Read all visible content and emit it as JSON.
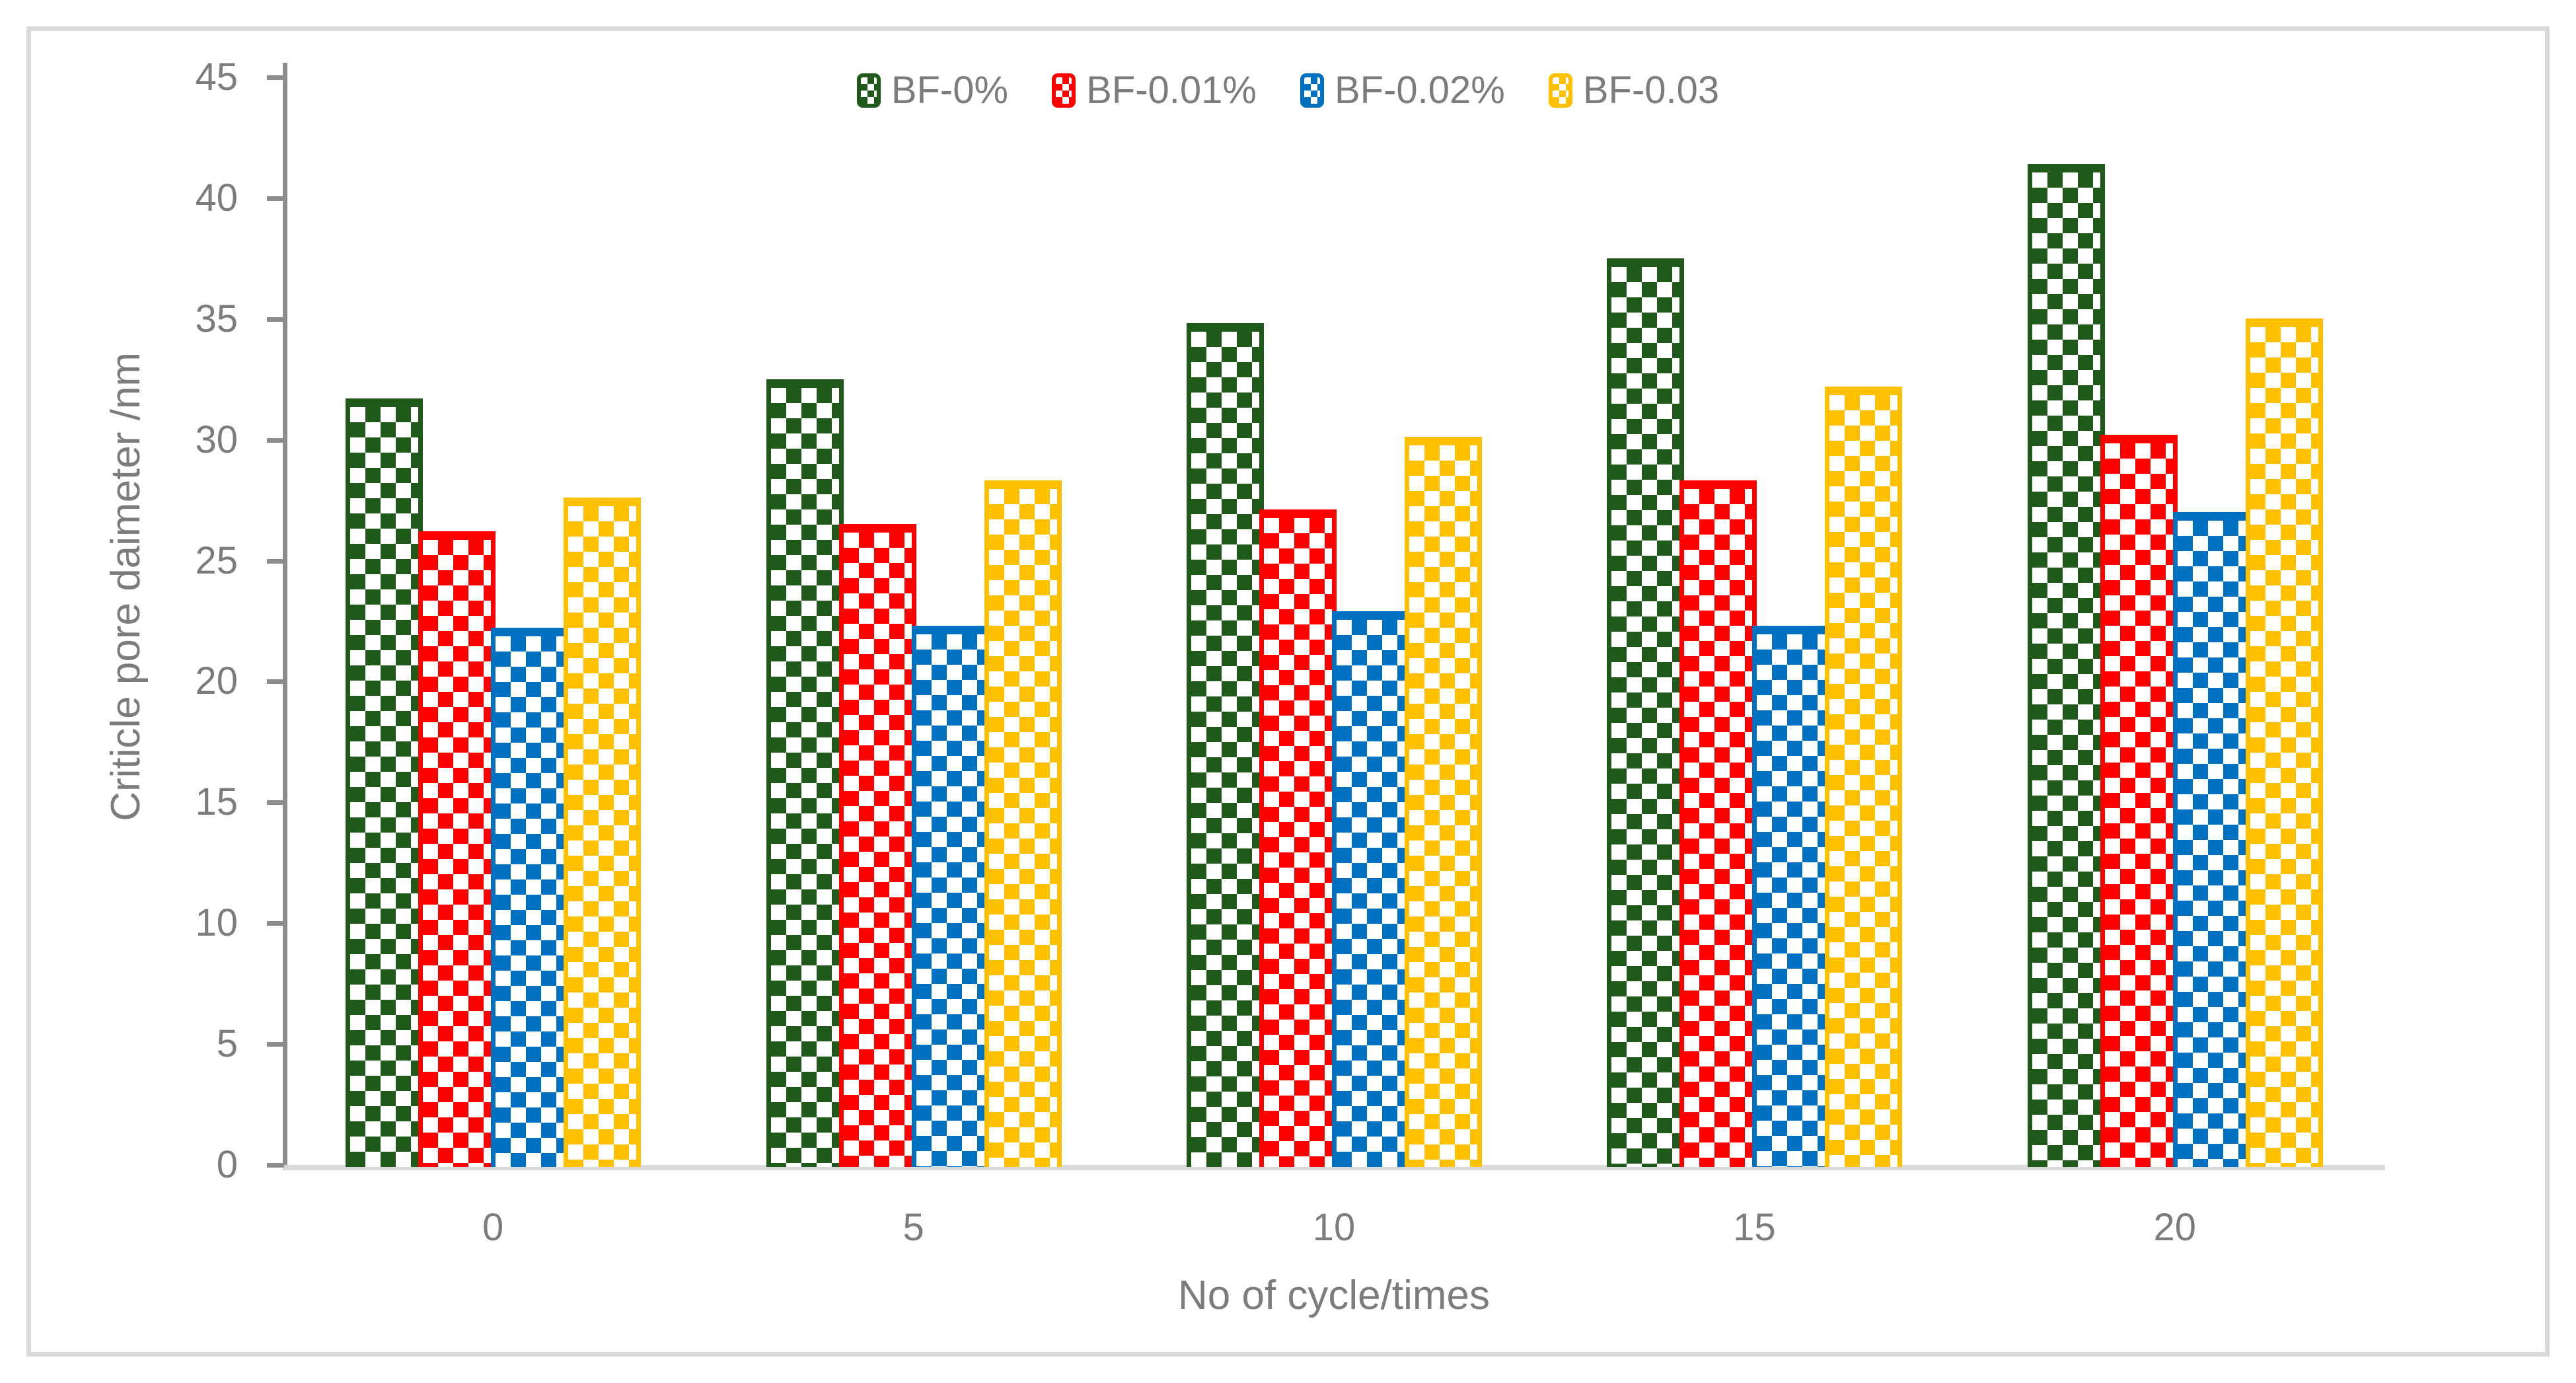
{
  "figure": {
    "background": "#FFFFFF",
    "canvas_border_color": "#D9D9D9"
  },
  "axes": {
    "y_title": "Criticle pore daimeter /nm",
    "x_title": "No of cycle/times",
    "y_tick_labels": [
      "0",
      "5",
      "10",
      "15",
      "20",
      "25",
      "30",
      "35",
      "40",
      "45"
    ],
    "x_tick_labels": [
      "0",
      "5",
      "10",
      "15",
      "20"
    ],
    "text_color": "#7C7C7C",
    "axis_line_color": "#8C8C8C",
    "baseline_color": "#D9D9D9"
  },
  "chart_data": {
    "type": "bar",
    "title": "",
    "categories": [
      "0",
      "5",
      "10",
      "15",
      "20"
    ],
    "series": [
      {
        "name": "BF-0%",
        "color": "#1F5A1B",
        "values": [
          31.8,
          32.6,
          34.9,
          37.6,
          41.5
        ]
      },
      {
        "name": "BF-0.01%",
        "color": "#FF0000",
        "values": [
          26.3,
          26.6,
          27.2,
          28.4,
          30.3
        ]
      },
      {
        "name": "BF-0.02%",
        "color": "#0070C0",
        "values": [
          22.3,
          22.4,
          23.0,
          22.4,
          27.1
        ]
      },
      {
        "name": "BF-0.03",
        "color": "#FFC000",
        "values": [
          27.7,
          28.4,
          30.2,
          32.3,
          35.1
        ]
      }
    ],
    "xlabel": "No of cycle/times",
    "ylabel": "Criticle pore daimeter /nm",
    "ylim": [
      0,
      45
    ],
    "ytick_step": 5,
    "grid": false,
    "legend_position": "top-center",
    "fill_pattern": "checkerboard"
  }
}
